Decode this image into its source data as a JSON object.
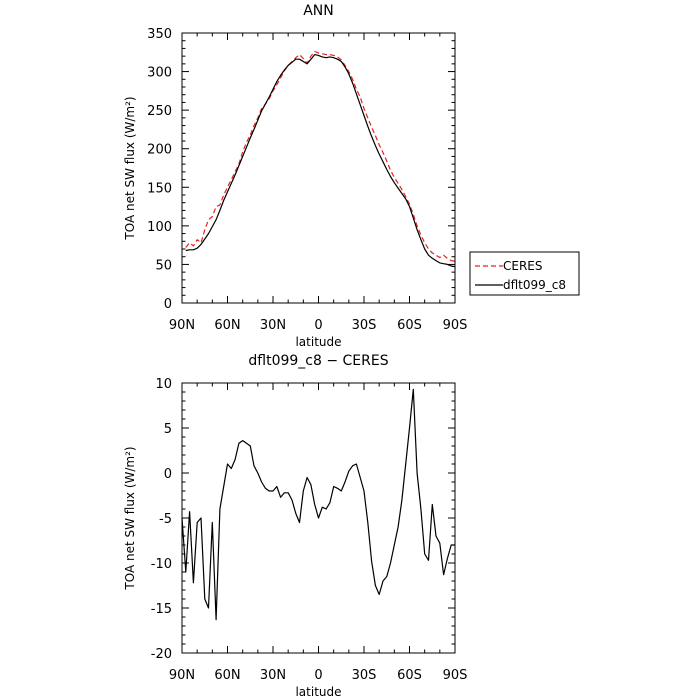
{
  "chart_data": [
    {
      "type": "line",
      "title": "ANN",
      "xlabel": "latitude",
      "ylabel": "TOA net SW flux (W/m²)",
      "xlim": [
        90,
        -90
      ],
      "ylim": [
        0,
        350
      ],
      "yticks": [
        0,
        50,
        100,
        150,
        200,
        250,
        300,
        350
      ],
      "xticks": [
        {
          "value": 90,
          "label": "90N"
        },
        {
          "value": 60,
          "label": "60N"
        },
        {
          "value": 30,
          "label": "30N"
        },
        {
          "value": 0,
          "label": "0"
        },
        {
          "value": -30,
          "label": "30S"
        },
        {
          "value": -60,
          "label": "60S"
        },
        {
          "value": -90,
          "label": "90S"
        }
      ],
      "legend_position": "right",
      "series": [
        {
          "name": "CERES",
          "color": "#e8201e",
          "dash": "dashed",
          "points": [
            [
              87.5,
              72
            ],
            [
              85,
              78
            ],
            [
              82.5,
              74
            ],
            [
              80,
              82
            ],
            [
              77.5,
              78
            ],
            [
              75,
              95
            ],
            [
              72.5,
              108
            ],
            [
              70,
              112
            ],
            [
              67.5,
              125
            ],
            [
              65,
              127
            ],
            [
              62.5,
              140
            ],
            [
              60,
              150
            ],
            [
              57.5,
              160
            ],
            [
              55,
              170
            ],
            [
              52.5,
              180
            ],
            [
              50,
              196
            ],
            [
              47.5,
              208
            ],
            [
              45,
              218
            ],
            [
              42.5,
              230
            ],
            [
              40,
              240
            ],
            [
              37.5,
              252
            ],
            [
              35,
              258
            ],
            [
              32.5,
              265
            ],
            [
              30,
              275
            ],
            [
              27.5,
              283
            ],
            [
              25,
              292
            ],
            [
              22.5,
              301
            ],
            [
              20,
              308
            ],
            [
              17.5,
              313
            ],
            [
              15,
              318
            ],
            [
              12.5,
              322
            ],
            [
              10,
              317
            ],
            [
              7.5,
              311
            ],
            [
              5,
              320
            ],
            [
              2.5,
              326
            ],
            [
              0,
              324
            ],
            [
              -2.5,
              323
            ],
            [
              -5,
              322
            ],
            [
              -7.5,
              322
            ],
            [
              -10,
              321
            ],
            [
              -12.5,
              319
            ],
            [
              -15,
              315
            ],
            [
              -17.5,
              308
            ],
            [
              -20,
              300
            ],
            [
              -22.5,
              290
            ],
            [
              -25,
              277
            ],
            [
              -27.5,
              267
            ],
            [
              -30,
              252
            ],
            [
              -32.5,
              240
            ],
            [
              -35,
              228
            ],
            [
              -37.5,
              217
            ],
            [
              -40,
              205
            ],
            [
              -42.5,
              195
            ],
            [
              -45,
              184
            ],
            [
              -47.5,
              172
            ],
            [
              -50,
              163
            ],
            [
              -52.5,
              155
            ],
            [
              -55,
              147
            ],
            [
              -57.5,
              138
            ],
            [
              -60,
              128
            ],
            [
              -62.5,
              115
            ],
            [
              -65,
              100
            ],
            [
              -67.5,
              88
            ],
            [
              -70,
              78
            ],
            [
              -72.5,
              70
            ],
            [
              -75,
              65
            ],
            [
              -77.5,
              62
            ],
            [
              -80,
              59
            ],
            [
              -82.5,
              62
            ],
            [
              -85,
              58
            ],
            [
              -87.5,
              55
            ],
            [
              -90,
              54
            ]
          ]
        },
        {
          "name": "dflt099_c8",
          "color": "#000000",
          "dash": "solid",
          "points": [
            [
              87.5,
              68
            ],
            [
              85,
              69
            ],
            [
              82.5,
              69
            ],
            [
              80,
              71
            ],
            [
              77.5,
              76
            ],
            [
              75,
              83
            ],
            [
              72.5,
              90
            ],
            [
              70,
              99
            ],
            [
              67.5,
              108
            ],
            [
              65,
              120
            ],
            [
              62.5,
              133
            ],
            [
              60,
              144
            ],
            [
              57.5,
              155
            ],
            [
              55,
              166
            ],
            [
              52.5,
              178
            ],
            [
              50,
              190
            ],
            [
              47.5,
              202
            ],
            [
              45,
              214
            ],
            [
              42.5,
              225
            ],
            [
              40,
              237
            ],
            [
              37.5,
              249
            ],
            [
              35,
              258
            ],
            [
              32.5,
              267
            ],
            [
              30,
              277
            ],
            [
              27.5,
              287
            ],
            [
              25,
              295
            ],
            [
              22.5,
              302
            ],
            [
              20,
              308
            ],
            [
              17.5,
              312
            ],
            [
              15,
              316
            ],
            [
              12.5,
              316
            ],
            [
              10,
              313
            ],
            [
              7.5,
              310
            ],
            [
              5,
              316
            ],
            [
              2.5,
              322
            ],
            [
              0,
              321
            ],
            [
              -2.5,
              319
            ],
            [
              -5,
              318
            ],
            [
              -7.5,
              319
            ],
            [
              -10,
              318
            ],
            [
              -12.5,
              316
            ],
            [
              -15,
              313
            ],
            [
              -17.5,
              306
            ],
            [
              -20,
              297
            ],
            [
              -22.5,
              285
            ],
            [
              -25,
              271
            ],
            [
              -27.5,
              257
            ],
            [
              -30,
              243
            ],
            [
              -32.5,
              229
            ],
            [
              -35,
              216
            ],
            [
              -37.5,
              204
            ],
            [
              -40,
              193
            ],
            [
              -42.5,
              183
            ],
            [
              -45,
              173
            ],
            [
              -47.5,
              164
            ],
            [
              -50,
              156
            ],
            [
              -52.5,
              149
            ],
            [
              -55,
              142
            ],
            [
              -57.5,
              135
            ],
            [
              -60,
              125
            ],
            [
              -62.5,
              110
            ],
            [
              -65,
              95
            ],
            [
              -67.5,
              82
            ],
            [
              -70,
              70
            ],
            [
              -72.5,
              62
            ],
            [
              -75,
              58
            ],
            [
              -77.5,
              55
            ],
            [
              -80,
              52
            ],
            [
              -82.5,
              51
            ],
            [
              -85,
              50
            ],
            [
              -87.5,
              48
            ],
            [
              -90,
              47
            ]
          ]
        }
      ]
    },
    {
      "type": "line",
      "title": "dflt099_c8 − CERES",
      "xlabel": "latitude",
      "ylabel": "TOA net SW flux (W/m²)",
      "xlim": [
        90,
        -90
      ],
      "ylim": [
        -20,
        10
      ],
      "yticks": [
        -20,
        -15,
        -10,
        -5,
        0,
        5,
        10
      ],
      "xticks": [
        {
          "value": 90,
          "label": "90N"
        },
        {
          "value": 60,
          "label": "60N"
        },
        {
          "value": 30,
          "label": "30N"
        },
        {
          "value": 0,
          "label": "0"
        },
        {
          "value": -30,
          "label": "30S"
        },
        {
          "value": -60,
          "label": "60S"
        },
        {
          "value": -90,
          "label": "90S"
        }
      ],
      "series": [
        {
          "color": "#000000",
          "dash": "solid",
          "points": [
            [
              90,
              -5
            ],
            [
              87.5,
              -11
            ],
            [
              85,
              -4.3
            ],
            [
              82.5,
              -12.2
            ],
            [
              80,
              -5.5
            ],
            [
              77.5,
              -5
            ],
            [
              75,
              -14
            ],
            [
              72.5,
              -15
            ],
            [
              70,
              -5.5
            ],
            [
              67.5,
              -16.3
            ],
            [
              65,
              -4
            ],
            [
              62.5,
              -1.5
            ],
            [
              60,
              1
            ],
            [
              57.5,
              0.5
            ],
            [
              55,
              1.5
            ],
            [
              52.5,
              3.3
            ],
            [
              50,
              3.6
            ],
            [
              47.5,
              3.3
            ],
            [
              45,
              3
            ],
            [
              42.5,
              0.8
            ],
            [
              40,
              0
            ],
            [
              37.5,
              -1
            ],
            [
              35,
              -1.7
            ],
            [
              32.5,
              -2
            ],
            [
              30,
              -2
            ],
            [
              27.5,
              -1.5
            ],
            [
              25,
              -2.7
            ],
            [
              22.5,
              -2.2
            ],
            [
              20,
              -2.2
            ],
            [
              17.5,
              -3
            ],
            [
              15,
              -4.5
            ],
            [
              12.5,
              -5.5
            ],
            [
              10,
              -2
            ],
            [
              7.5,
              -0.5
            ],
            [
              5,
              -1.3
            ],
            [
              2.5,
              -3.5
            ],
            [
              0,
              -5
            ],
            [
              -2.5,
              -3.8
            ],
            [
              -5,
              -4
            ],
            [
              -7.5,
              -3.3
            ],
            [
              -10,
              -1.5
            ],
            [
              -12.5,
              -1.7
            ],
            [
              -15,
              -2
            ],
            [
              -17.5,
              -1
            ],
            [
              -20,
              0.2
            ],
            [
              -22.5,
              0.8
            ],
            [
              -25,
              1
            ],
            [
              -27.5,
              -0.5
            ],
            [
              -30,
              -2
            ],
            [
              -32.5,
              -5.5
            ],
            [
              -35,
              -9.8
            ],
            [
              -37.5,
              -12.5
            ],
            [
              -40,
              -13.5
            ],
            [
              -42.5,
              -12
            ],
            [
              -45,
              -11.5
            ],
            [
              -47.5,
              -10
            ],
            [
              -50,
              -8
            ],
            [
              -52.5,
              -6
            ],
            [
              -55,
              -3
            ],
            [
              -57.5,
              1
            ],
            [
              -60,
              5
            ],
            [
              -62.5,
              9.3
            ],
            [
              -65,
              0
            ],
            [
              -67.5,
              -4
            ],
            [
              -70,
              -9
            ],
            [
              -72.5,
              -9.7
            ],
            [
              -75,
              -3.5
            ],
            [
              -77.5,
              -7
            ],
            [
              -80,
              -7.8
            ],
            [
              -82.5,
              -11.3
            ],
            [
              -85,
              -9.5
            ],
            [
              -87.5,
              -8
            ],
            [
              -90,
              -8
            ]
          ]
        }
      ]
    }
  ]
}
